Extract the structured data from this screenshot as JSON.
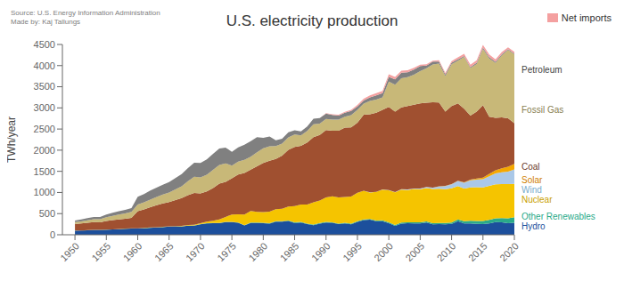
{
  "chart_data": {
    "type": "area",
    "stacked": true,
    "title": "U.S. electricity production",
    "subtitle": "Source: U.S. Energy Information Administration\nMade by: Kaj Tallungs",
    "ylabel": "TWh/year",
    "grid": false,
    "legend": "upper right",
    "x": [
      1950,
      1951,
      1952,
      1953,
      1954,
      1955,
      1956,
      1957,
      1958,
      1959,
      1960,
      1961,
      1962,
      1963,
      1964,
      1965,
      1966,
      1967,
      1968,
      1969,
      1970,
      1971,
      1972,
      1973,
      1974,
      1975,
      1976,
      1977,
      1978,
      1979,
      1980,
      1981,
      1982,
      1983,
      1984,
      1985,
      1986,
      1987,
      1988,
      1989,
      1990,
      1991,
      1992,
      1993,
      1994,
      1995,
      1996,
      1997,
      1998,
      1999,
      2000,
      2001,
      2002,
      2003,
      2004,
      2005,
      2006,
      2007,
      2008,
      2009,
      2010,
      2011,
      2012,
      2013,
      2014,
      2015,
      2016,
      2017,
      2018,
      2019,
      2020
    ],
    "series": [
      {
        "name": "Hydro",
        "color": "#1c4f9c",
        "values": [
          96,
          99,
          104,
          112,
          113,
          118,
          124,
          132,
          140,
          145,
          150,
          155,
          165,
          172,
          179,
          193,
          198,
          197,
          213,
          215,
          247,
          266,
          273,
          272,
          300,
          300,
          283,
          220,
          280,
          280,
          276,
          261,
          309,
          309,
          327,
          281,
          291,
          250,
          227,
          265,
          290,
          282,
          250,
          270,
          247,
          307,
          347,
          355,
          320,
          321,
          275,
          211,
          264,
          272,
          268,
          270,
          289,
          247,
          251,
          248,
          255,
          319,
          268,
          268,
          259,
          250,
          268,
          300,
          292,
          276,
          285
        ]
      },
      {
        "name": "Other Renewables",
        "color": "#2aaa8a",
        "values": [
          2,
          2,
          2,
          2,
          2,
          2,
          2,
          2,
          3,
          3,
          3,
          3,
          3,
          3,
          4,
          4,
          4,
          5,
          5,
          5,
          6,
          6,
          6,
          7,
          7,
          7,
          8,
          8,
          9,
          9,
          10,
          11,
          11,
          11,
          12,
          12,
          12,
          12,
          13,
          14,
          14,
          14,
          15,
          15,
          16,
          16,
          17,
          18,
          19,
          20,
          22,
          22,
          23,
          24,
          25,
          26,
          27,
          28,
          30,
          32,
          36,
          42,
          54,
          62,
          68,
          75,
          82,
          90,
          100,
          115,
          130
        ]
      },
      {
        "name": "Nuclear",
        "color": "#f5c400",
        "values": [
          1,
          1,
          2,
          2,
          2,
          2,
          2,
          2,
          2,
          2,
          2,
          3,
          3,
          3,
          4,
          4,
          5,
          8,
          13,
          14,
          22,
          38,
          54,
          83,
          114,
          173,
          191,
          251,
          276,
          255,
          251,
          273,
          283,
          294,
          328,
          384,
          414,
          455,
          527,
          529,
          577,
          613,
          619,
          610,
          640,
          673,
          675,
          628,
          673,
          728,
          754,
          769,
          780,
          763,
          788,
          780,
          787,
          806,
          806,
          799,
          807,
          790,
          769,
          789,
          797,
          797,
          805,
          805,
          808,
          809,
          790
        ]
      },
      {
        "name": "Wind",
        "color": "#aac8e8",
        "values": [
          0,
          0,
          0,
          0,
          0,
          0,
          0,
          0,
          0,
          0,
          0,
          0,
          0,
          0,
          0,
          0,
          0,
          0,
          0,
          0,
          0,
          0,
          0,
          0,
          0,
          0,
          0,
          0,
          0,
          0,
          0,
          0,
          0,
          0,
          0,
          0,
          0,
          0,
          0,
          0,
          0,
          0,
          0,
          0,
          0,
          0,
          3,
          3,
          3,
          4,
          6,
          7,
          11,
          11,
          14,
          18,
          27,
          34,
          55,
          74,
          95,
          120,
          140,
          167,
          182,
          191,
          227,
          254,
          275,
          295,
          338
        ]
      },
      {
        "name": "Solar",
        "color": "#f5a800",
        "values": [
          0,
          0,
          0,
          0,
          0,
          0,
          0,
          0,
          0,
          0,
          0,
          0,
          0,
          0,
          0,
          0,
          0,
          0,
          0,
          0,
          0,
          0,
          0,
          0,
          0,
          0,
          0,
          0,
          0,
          0,
          0,
          0,
          0,
          0,
          0,
          0,
          0,
          0,
          0,
          0,
          0,
          0,
          0,
          0,
          0,
          0,
          0,
          0,
          0,
          0,
          0,
          0,
          0,
          0,
          0,
          0,
          0,
          0,
          2,
          2,
          4,
          7,
          12,
          18,
          26,
          39,
          57,
          77,
          96,
          112,
          132
        ]
      },
      {
        "name": "Coal",
        "color": "#a05030",
        "values": [
          155,
          165,
          176,
          186,
          180,
          204,
          219,
          226,
          232,
          248,
          403,
          439,
          481,
          520,
          555,
          571,
          614,
          655,
          706,
          756,
          704,
          713,
          771,
          849,
          828,
          853,
          944,
          985,
          976,
          1075,
          1162,
          1203,
          1192,
          1259,
          1341,
          1402,
          1386,
          1464,
          1540,
          1554,
          1594,
          1551,
          1576,
          1639,
          1635,
          1652,
          1795,
          1845,
          1873,
          1881,
          1966,
          1903,
          1933,
          1974,
          1978,
          2013,
          1991,
          2016,
          1985,
          1755,
          1847,
          1827,
          1737,
          1514,
          1580,
          1712,
          1352,
          1241,
          1206,
          1147,
          966
        ]
      },
      {
        "name": "Fossil Gas",
        "color": "#c8b878",
        "values": [
          45,
          50,
          56,
          65,
          70,
          90,
          100,
          115,
          130,
          145,
          157,
          168,
          180,
          195,
          210,
          225,
          250,
          280,
          330,
          380,
          375,
          395,
          430,
          440,
          440,
          300,
          305,
          310,
          305,
          330,
          346,
          346,
          305,
          280,
          295,
          291,
          249,
          272,
          305,
          267,
          264,
          265,
          264,
          259,
          291,
          307,
          263,
          315,
          309,
          296,
          601,
          639,
          691,
          682,
          710,
          760,
          815,
          897,
          920,
          845,
          987,
          1013,
          1225,
          1124,
          1126,
          1332,
          1378,
          1296,
          1468,
          1612,
          1626
        ]
      },
      {
        "name": "Petroleum",
        "color": "#808080",
        "values": [
          40,
          47,
          53,
          55,
          55,
          64,
          72,
          78,
          84,
          90,
          182,
          196,
          215,
          224,
          233,
          250,
          269,
          289,
          310,
          335,
          344,
          366,
          381,
          388,
          373,
          330,
          335,
          355,
          365,
          360,
          246,
          228,
          136,
          116,
          118,
          103,
          95,
          107,
          130,
          131,
          126,
          111,
          93,
          91,
          97,
          78,
          77,
          87,
          100,
          97,
          111,
          124,
          128,
          118,
          125,
          122,
          64,
          65,
          46,
          36,
          37,
          30,
          23,
          22,
          30,
          30,
          32,
          28,
          24,
          23,
          20
        ]
      },
      {
        "name": "Net imports",
        "color": "#f4a0a0",
        "values": [
          0,
          0,
          0,
          0,
          0,
          0,
          0,
          0,
          0,
          0,
          0,
          0,
          0,
          0,
          0,
          0,
          0,
          0,
          0,
          0,
          0,
          0,
          0,
          0,
          0,
          0,
          0,
          0,
          0,
          0,
          0,
          0,
          0,
          0,
          0,
          0,
          0,
          0,
          0,
          0,
          10,
          15,
          20,
          25,
          30,
          35,
          40,
          45,
          50,
          55,
          60,
          55,
          50,
          45,
          40,
          35,
          30,
          25,
          30,
          35,
          40,
          45,
          50,
          55,
          60,
          65,
          60,
          55,
          50,
          45,
          40
        ]
      }
    ],
    "annotations": [
      {
        "text": "Hydro",
        "y": 300,
        "color": "#1c4f9c"
      },
      {
        "text": "Other Renewables",
        "y": 430,
        "color": "#2aaa8a"
      },
      {
        "text": "Nuclear",
        "y": 900,
        "color": "#c8a000"
      },
      {
        "text": "Wind",
        "y": 1180,
        "color": "#7aaccc"
      },
      {
        "text": "Solar",
        "y": 1300,
        "color": "#d08000"
      },
      {
        "text": "Coal",
        "y": 1600,
        "color": "#6a3828"
      },
      {
        "text": "Fossil Gas",
        "y": 2950,
        "color": "#888050"
      },
      {
        "text": "Petroleum",
        "y": 3900,
        "color": "#444444"
      }
    ],
    "xlim": [
      1948,
      2020
    ],
    "xticks": [
      1950,
      1955,
      1960,
      1965,
      1970,
      1975,
      1980,
      1985,
      1990,
      1995,
      2000,
      2005,
      2010,
      2015,
      2020
    ],
    "ylim": [
      0,
      4500
    ],
    "yticks": [
      0,
      500,
      1000,
      1500,
      2000,
      2500,
      3000,
      3500,
      4000,
      4500
    ]
  }
}
